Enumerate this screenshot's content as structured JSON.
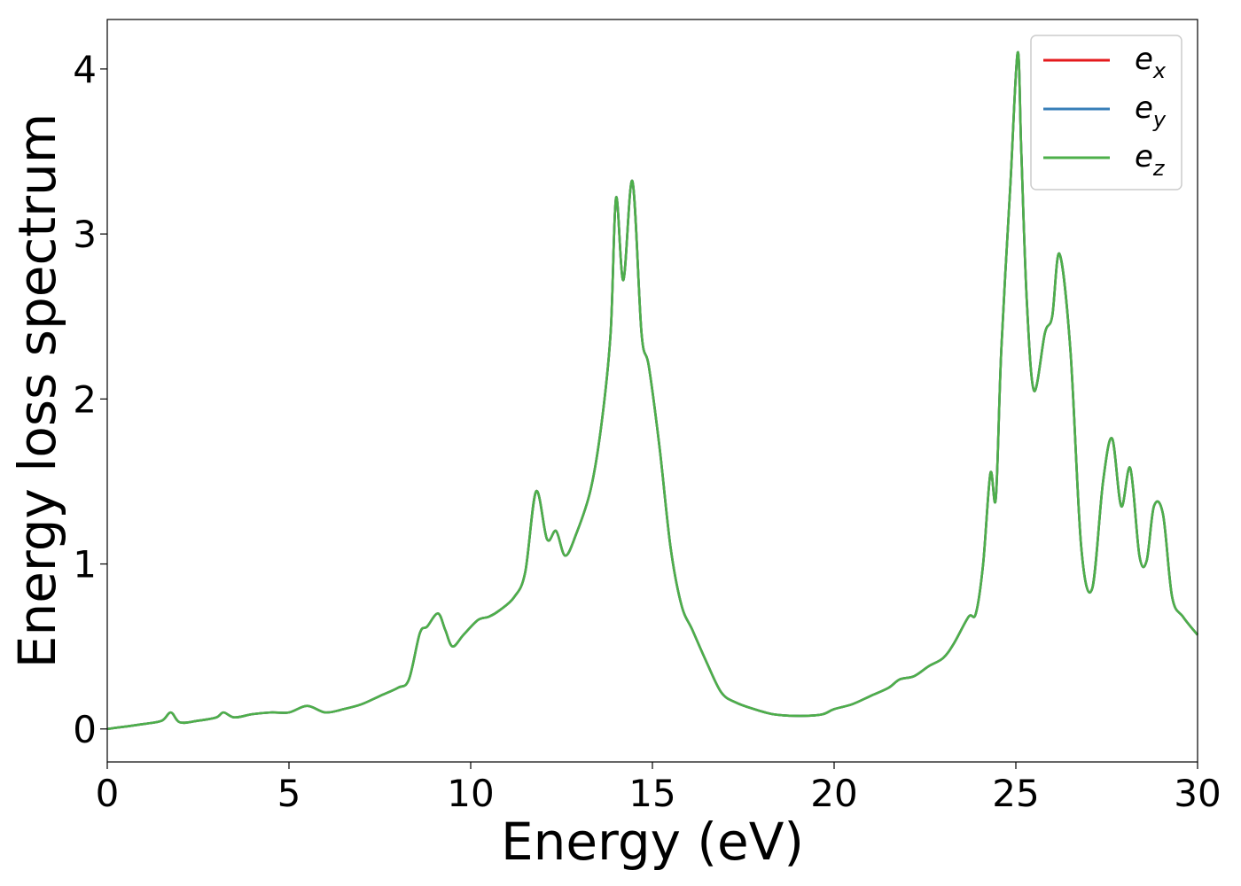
{
  "chart_data": {
    "type": "line",
    "xlabel": "Energy (eV)",
    "ylabel": "Energy loss spectrum",
    "xlim": [
      0,
      30
    ],
    "ylim": [
      -0.2,
      4.3
    ],
    "xticks": [
      0,
      5,
      10,
      15,
      20,
      25,
      30
    ],
    "yticks": [
      0,
      1,
      2,
      3,
      4
    ],
    "grid": false,
    "legend_position": "top-right",
    "series": [
      {
        "name": "e",
        "sub": "x",
        "color": "#e41a1c",
        "x": [
          0,
          1,
          1.5,
          1.75,
          2,
          2.5,
          3,
          3.2,
          3.5,
          4,
          4.5,
          5,
          5.5,
          6,
          6.5,
          7,
          7.5,
          8,
          8.3,
          8.6,
          8.8,
          9.1,
          9.3,
          9.5,
          9.8,
          10.2,
          10.5,
          10.8,
          11.2,
          11.5,
          11.8,
          12.1,
          12.35,
          12.6,
          12.9,
          13.3,
          13.6,
          13.85,
          14.0,
          14.2,
          14.45,
          14.7,
          14.9,
          15.2,
          15.5,
          15.8,
          16.1,
          16.5,
          16.9,
          17.3,
          17.8,
          18.3,
          18.8,
          19.3,
          19.7,
          20.0,
          20.5,
          21.0,
          21.5,
          21.8,
          22.2,
          22.6,
          23.0,
          23.3,
          23.7,
          23.9,
          24.1,
          24.3,
          24.45,
          24.6,
          24.85,
          25.05,
          25.15,
          25.3,
          25.5,
          25.8,
          26.0,
          26.2,
          26.5,
          26.8,
          27.1,
          27.4,
          27.65,
          27.9,
          28.15,
          28.4,
          28.6,
          28.8,
          29.05,
          29.3,
          29.6,
          30.0
        ],
        "y": [
          0,
          0.03,
          0.05,
          0.1,
          0.04,
          0.05,
          0.07,
          0.1,
          0.07,
          0.09,
          0.1,
          0.1,
          0.14,
          0.1,
          0.12,
          0.15,
          0.2,
          0.25,
          0.3,
          0.58,
          0.62,
          0.7,
          0.6,
          0.5,
          0.57,
          0.66,
          0.68,
          0.72,
          0.8,
          0.95,
          1.44,
          1.15,
          1.2,
          1.05,
          1.18,
          1.45,
          1.85,
          2.4,
          3.22,
          2.72,
          3.32,
          2.4,
          2.2,
          1.7,
          1.1,
          0.75,
          0.6,
          0.4,
          0.22,
          0.16,
          0.12,
          0.09,
          0.08,
          0.08,
          0.09,
          0.12,
          0.15,
          0.2,
          0.25,
          0.3,
          0.32,
          0.38,
          0.43,
          0.52,
          0.68,
          0.7,
          1.0,
          1.55,
          1.4,
          2.3,
          3.3,
          4.1,
          3.5,
          2.6,
          2.05,
          2.4,
          2.5,
          2.88,
          2.3,
          1.1,
          0.85,
          1.5,
          1.76,
          1.35,
          1.58,
          1.05,
          1.02,
          1.35,
          1.3,
          0.8,
          0.68,
          0.57
        ]
      },
      {
        "name": "e",
        "sub": "y",
        "color": "#377eb8",
        "x": [
          0,
          1,
          1.5,
          1.75,
          2,
          2.5,
          3,
          3.2,
          3.5,
          4,
          4.5,
          5,
          5.5,
          6,
          6.5,
          7,
          7.5,
          8,
          8.3,
          8.6,
          8.8,
          9.1,
          9.3,
          9.5,
          9.8,
          10.2,
          10.5,
          10.8,
          11.2,
          11.5,
          11.8,
          12.1,
          12.35,
          12.6,
          12.9,
          13.3,
          13.6,
          13.85,
          14.0,
          14.2,
          14.45,
          14.7,
          14.9,
          15.2,
          15.5,
          15.8,
          16.1,
          16.5,
          16.9,
          17.3,
          17.8,
          18.3,
          18.8,
          19.3,
          19.7,
          20.0,
          20.5,
          21.0,
          21.5,
          21.8,
          22.2,
          22.6,
          23.0,
          23.3,
          23.7,
          23.9,
          24.1,
          24.3,
          24.45,
          24.6,
          24.85,
          25.05,
          25.15,
          25.3,
          25.5,
          25.8,
          26.0,
          26.2,
          26.5,
          26.8,
          27.1,
          27.4,
          27.65,
          27.9,
          28.15,
          28.4,
          28.6,
          28.8,
          29.05,
          29.3,
          29.6,
          30.0
        ],
        "y": [
          0,
          0.03,
          0.05,
          0.1,
          0.04,
          0.05,
          0.07,
          0.1,
          0.07,
          0.09,
          0.1,
          0.1,
          0.14,
          0.1,
          0.12,
          0.15,
          0.2,
          0.25,
          0.3,
          0.58,
          0.62,
          0.7,
          0.6,
          0.5,
          0.57,
          0.66,
          0.68,
          0.72,
          0.8,
          0.95,
          1.44,
          1.15,
          1.2,
          1.05,
          1.18,
          1.45,
          1.85,
          2.4,
          3.22,
          2.72,
          3.32,
          2.4,
          2.2,
          1.7,
          1.1,
          0.75,
          0.6,
          0.4,
          0.22,
          0.16,
          0.12,
          0.09,
          0.08,
          0.08,
          0.09,
          0.12,
          0.15,
          0.2,
          0.25,
          0.3,
          0.32,
          0.38,
          0.43,
          0.52,
          0.68,
          0.7,
          1.0,
          1.55,
          1.4,
          2.3,
          3.3,
          4.1,
          3.5,
          2.6,
          2.05,
          2.4,
          2.5,
          2.88,
          2.3,
          1.1,
          0.85,
          1.5,
          1.76,
          1.35,
          1.58,
          1.05,
          1.02,
          1.35,
          1.3,
          0.8,
          0.68,
          0.57
        ]
      },
      {
        "name": "e",
        "sub": "z",
        "color": "#4daf4a",
        "x": [
          0,
          1,
          1.5,
          1.75,
          2,
          2.5,
          3,
          3.2,
          3.5,
          4,
          4.5,
          5,
          5.5,
          6,
          6.5,
          7,
          7.5,
          8,
          8.3,
          8.6,
          8.8,
          9.1,
          9.3,
          9.5,
          9.8,
          10.2,
          10.5,
          10.8,
          11.2,
          11.5,
          11.8,
          12.1,
          12.35,
          12.6,
          12.9,
          13.3,
          13.6,
          13.85,
          14.0,
          14.2,
          14.45,
          14.7,
          14.9,
          15.2,
          15.5,
          15.8,
          16.1,
          16.5,
          16.9,
          17.3,
          17.8,
          18.3,
          18.8,
          19.3,
          19.7,
          20.0,
          20.5,
          21.0,
          21.5,
          21.8,
          22.2,
          22.6,
          23.0,
          23.3,
          23.7,
          23.9,
          24.1,
          24.3,
          24.45,
          24.6,
          24.85,
          25.05,
          25.15,
          25.3,
          25.5,
          25.8,
          26.0,
          26.2,
          26.5,
          26.8,
          27.1,
          27.4,
          27.65,
          27.9,
          28.15,
          28.4,
          28.6,
          28.8,
          29.05,
          29.3,
          29.6,
          30.0
        ],
        "y": [
          0,
          0.03,
          0.05,
          0.1,
          0.04,
          0.05,
          0.07,
          0.1,
          0.07,
          0.09,
          0.1,
          0.1,
          0.14,
          0.1,
          0.12,
          0.15,
          0.2,
          0.25,
          0.3,
          0.58,
          0.62,
          0.7,
          0.6,
          0.5,
          0.57,
          0.66,
          0.68,
          0.72,
          0.8,
          0.95,
          1.44,
          1.15,
          1.2,
          1.05,
          1.18,
          1.45,
          1.85,
          2.4,
          3.22,
          2.72,
          3.32,
          2.4,
          2.2,
          1.7,
          1.1,
          0.75,
          0.6,
          0.4,
          0.22,
          0.16,
          0.12,
          0.09,
          0.08,
          0.08,
          0.09,
          0.12,
          0.15,
          0.2,
          0.25,
          0.3,
          0.32,
          0.38,
          0.43,
          0.52,
          0.68,
          0.7,
          1.0,
          1.55,
          1.4,
          2.3,
          3.3,
          4.1,
          3.5,
          2.6,
          2.05,
          2.4,
          2.5,
          2.88,
          2.3,
          1.1,
          0.85,
          1.5,
          1.76,
          1.35,
          1.58,
          1.05,
          1.02,
          1.35,
          1.3,
          0.8,
          0.68,
          0.57
        ]
      }
    ]
  }
}
